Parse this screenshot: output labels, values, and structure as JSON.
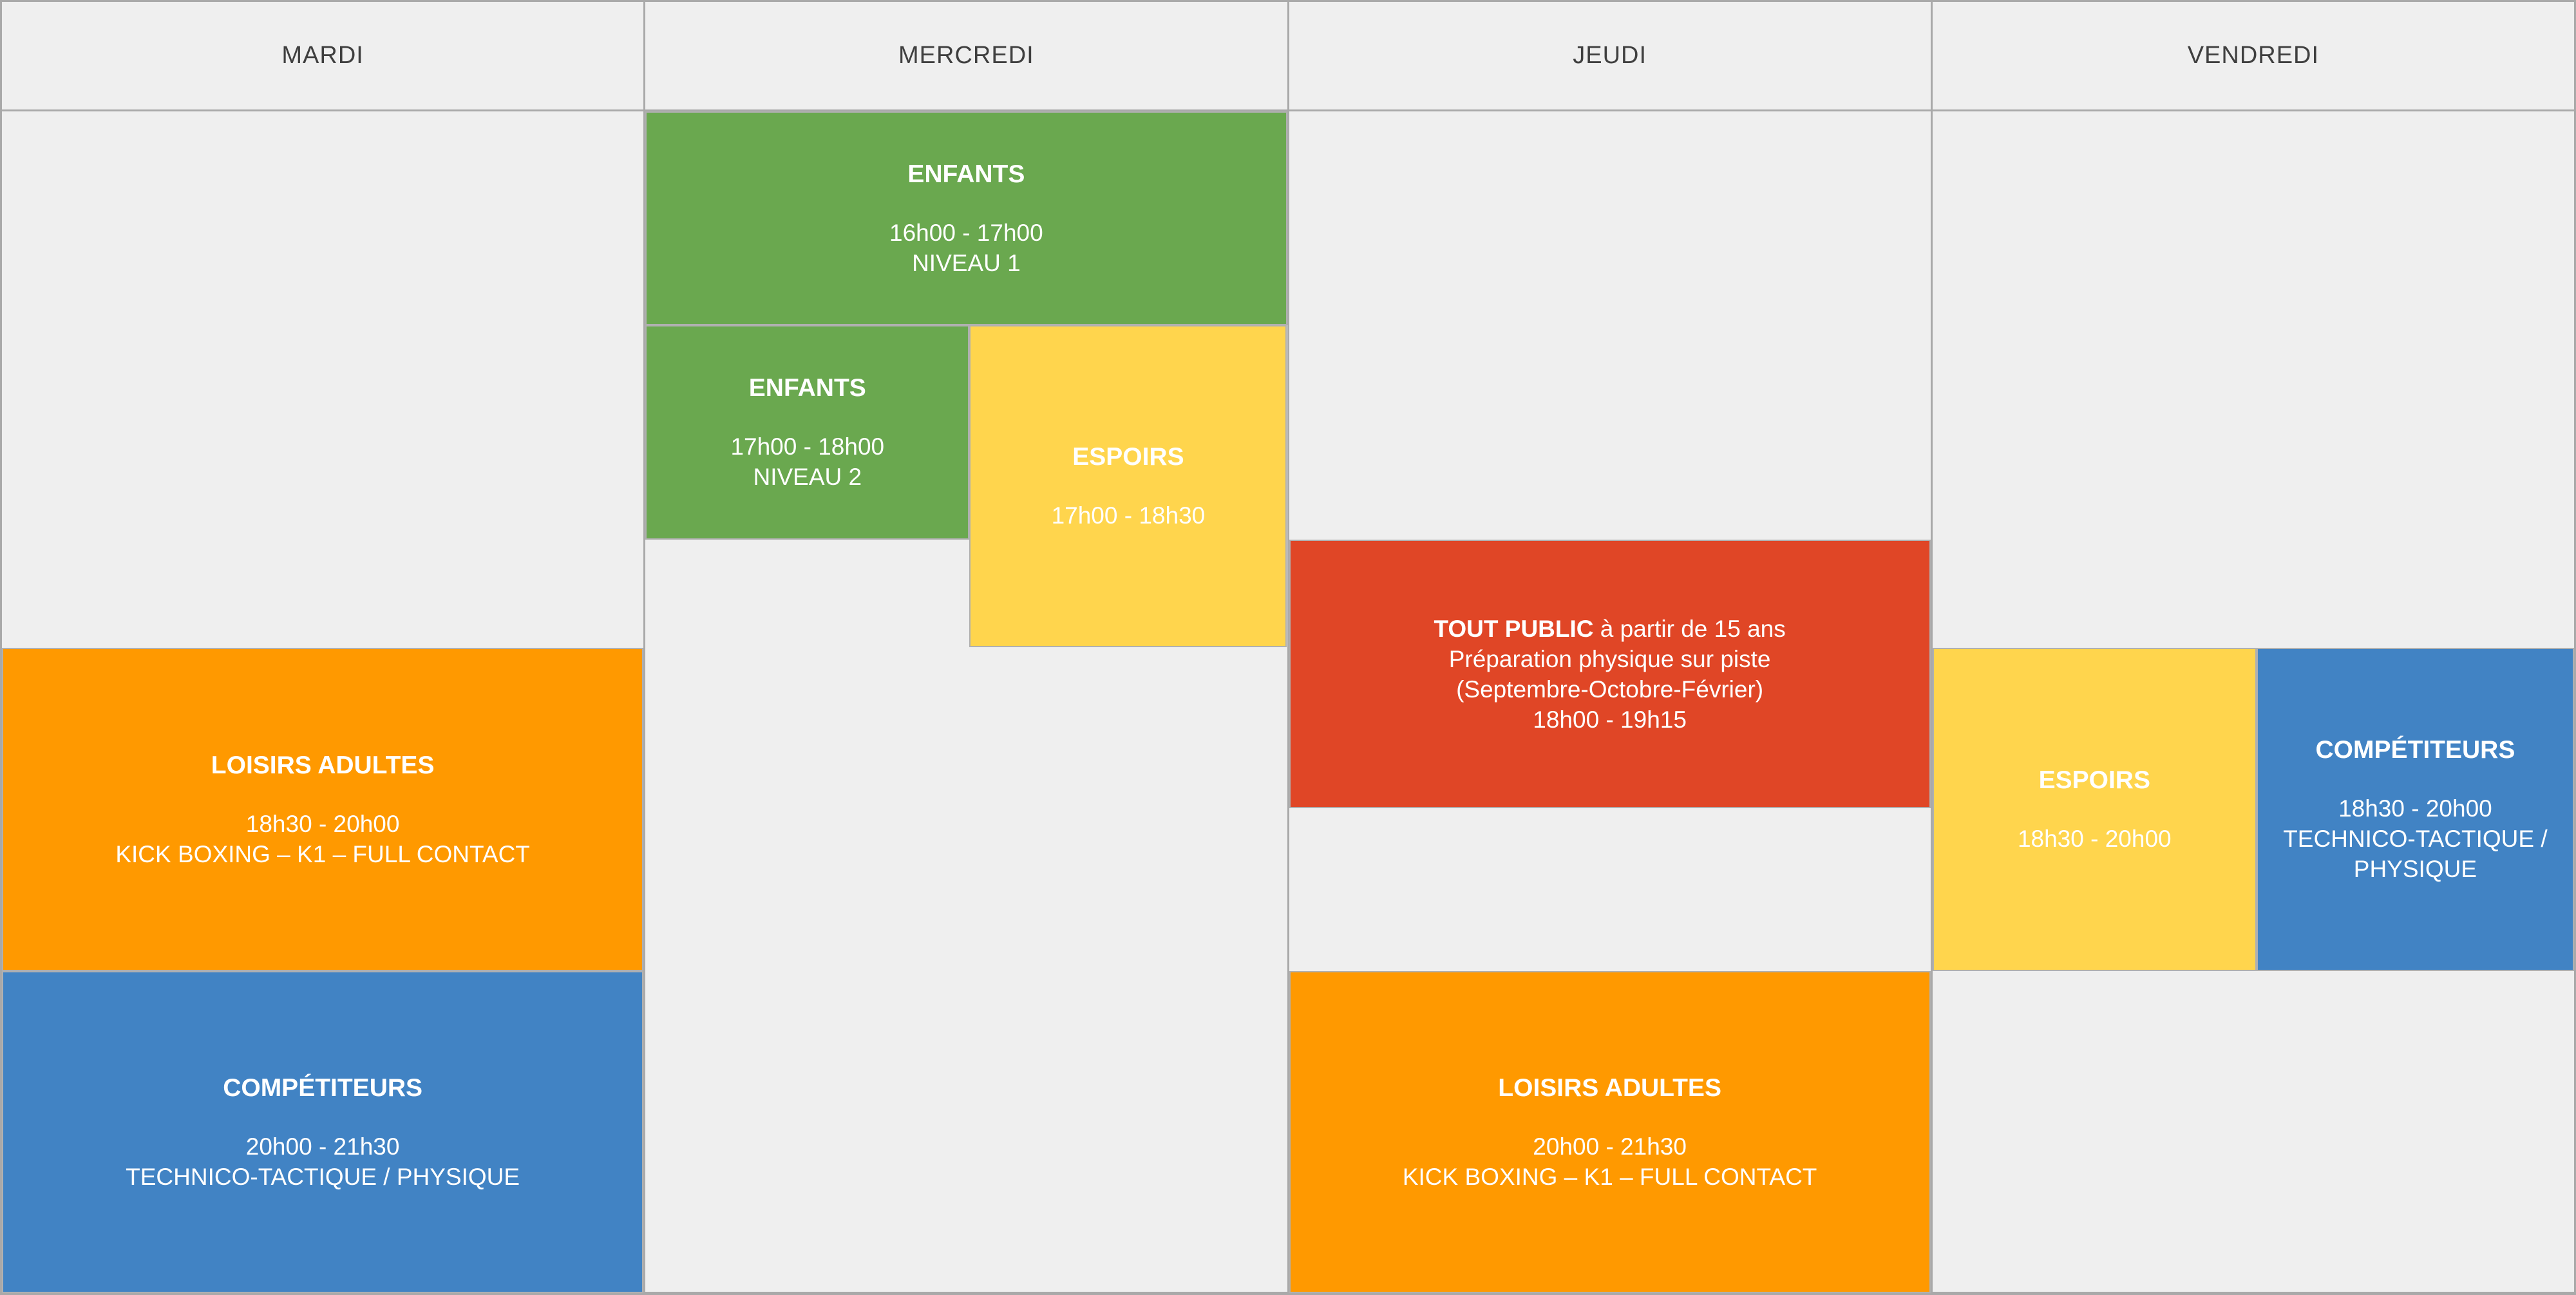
{
  "palette": {
    "background": "#efefef",
    "grid_border": "#a9a9a9",
    "block_border": "#b0b0b0",
    "header_text": "#3f3f3f",
    "event_text": "#ffffff",
    "green": "#6aa84f",
    "yellow": "#ffd54d",
    "orange": "#ff9900",
    "blue": "#4183c4",
    "red": "#e04626"
  },
  "header": {
    "days": [
      "MARDI",
      "MERCREDI",
      "JEUDI",
      "VENDREDI"
    ]
  },
  "events": [
    {
      "day": "MERCREDI",
      "color": "green",
      "title": "ENFANTS",
      "lines": [
        "16h00 - 17h00",
        "NIVEAU 1"
      ]
    },
    {
      "day": "MERCREDI",
      "color": "green",
      "title": "ENFANTS",
      "lines": [
        "17h00 - 18h00",
        "NIVEAU 2"
      ]
    },
    {
      "day": "MERCREDI",
      "color": "yellow",
      "title": "ESPOIRS",
      "lines": [
        "17h00 - 18h30"
      ]
    },
    {
      "day": "JEUDI",
      "color": "red",
      "title": "TOUT PUBLIC",
      "title_suffix": " à partir de 15 ans",
      "lines": [
        "Préparation physique sur piste",
        "(Septembre-Octobre-Février)",
        "18h00 - 19h15"
      ]
    },
    {
      "day": "MARDI",
      "color": "orange",
      "title": "LOISIRS ADULTES",
      "lines": [
        "18h30 - 20h00",
        "KICK BOXING – K1 – FULL CONTACT"
      ]
    },
    {
      "day": "MARDI",
      "color": "blue",
      "title": "COMPÉTITEURS",
      "lines": [
        "20h00 - 21h30",
        "TECHNICO-TACTIQUE / PHYSIQUE"
      ]
    },
    {
      "day": "JEUDI",
      "color": "orange",
      "title": "LOISIRS ADULTES",
      "lines": [
        "20h00 - 21h30",
        "KICK BOXING – K1 – FULL CONTACT"
      ]
    },
    {
      "day": "VENDREDI",
      "color": "yellow",
      "title": "ESPOIRS",
      "lines": [
        "18h30 - 20h00"
      ]
    },
    {
      "day": "VENDREDI",
      "color": "blue",
      "title": "COMPÉTITEURS",
      "lines": [
        "18h30 - 20h00",
        "TECHNICO-TACTIQUE / PHYSIQUE"
      ]
    }
  ]
}
